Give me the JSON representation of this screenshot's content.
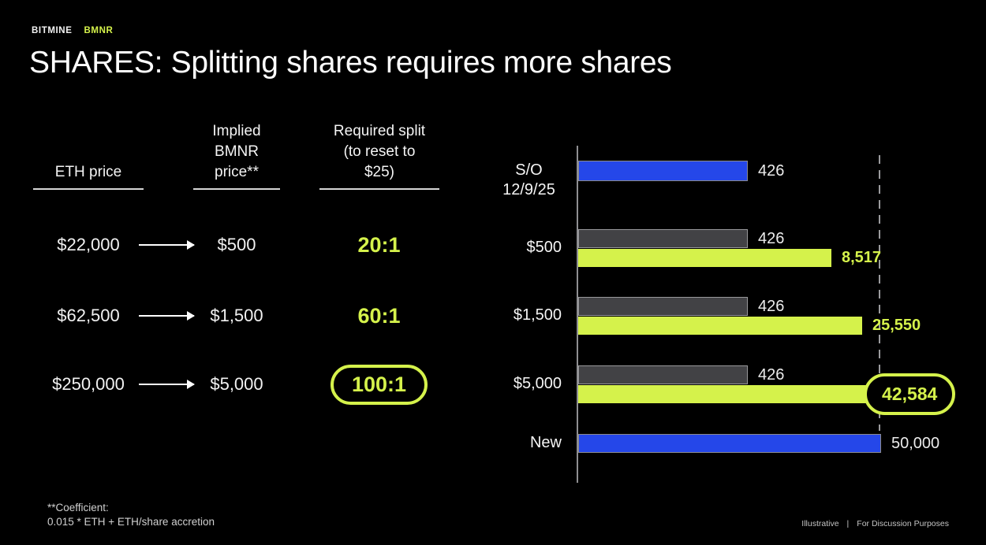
{
  "colors": {
    "accent_green": "#d5f24b",
    "accent_blue": "#2547e9",
    "bar_gray": "#424245",
    "background": "#000000"
  },
  "brand": {
    "name": "BITMINE",
    "ticker": "BMNR"
  },
  "title": "SHARES: Splitting shares requires more shares",
  "table": {
    "headers": {
      "eth": "ETH price",
      "bmnr": "Implied\nBMNR\nprice**",
      "split": "Required split\n(to reset to\n$25)"
    },
    "rows": [
      {
        "eth_price": "$22,000",
        "implied_price": "$500",
        "split": "20:1",
        "circled": false
      },
      {
        "eth_price": "$62,500",
        "implied_price": "$1,500",
        "split": "60:1",
        "circled": false
      },
      {
        "eth_price": "$250,000",
        "implied_price": "$5,000",
        "split": "100:1",
        "circled": true
      }
    ]
  },
  "chart_data": {
    "type": "bar",
    "orientation": "horizontal",
    "scale": "log10",
    "axis_max": 50000,
    "reference_line_value": 50000,
    "grid": false,
    "legend": false,
    "rows": [
      {
        "label": "S/O\n12/9/25",
        "bars": [
          {
            "series": "shares-outstanding",
            "value": 426,
            "label": "426",
            "color": "blue",
            "circled": false
          }
        ]
      },
      {
        "label": "$500",
        "bars": [
          {
            "series": "shares-outstanding",
            "value": 426,
            "label": "426",
            "color": "gray",
            "circled": false
          },
          {
            "series": "post-split-shares",
            "value": 8517,
            "label": "8,517",
            "color": "green",
            "circled": false
          }
        ]
      },
      {
        "label": "$1,500",
        "bars": [
          {
            "series": "shares-outstanding",
            "value": 426,
            "label": "426",
            "color": "gray",
            "circled": false
          },
          {
            "series": "post-split-shares",
            "value": 25550,
            "label": "25,550",
            "color": "green",
            "circled": false
          }
        ]
      },
      {
        "label": "$5,000",
        "bars": [
          {
            "series": "shares-outstanding",
            "value": 426,
            "label": "426",
            "color": "gray",
            "circled": false
          },
          {
            "series": "post-split-shares",
            "value": 42584,
            "label": "42,584",
            "color": "green",
            "circled": true
          }
        ]
      },
      {
        "label": "New",
        "bars": [
          {
            "series": "new-shares",
            "value": 50000,
            "label": "50,000",
            "color": "blue",
            "circled": false
          }
        ]
      }
    ]
  },
  "footnote": {
    "line1": "**Coefficient:",
    "line2": "0.015 * ETH + ETH/share accretion"
  },
  "disclaimer": {
    "left": "Illustrative",
    "separator": "|",
    "right": "For Discussion Purposes"
  }
}
